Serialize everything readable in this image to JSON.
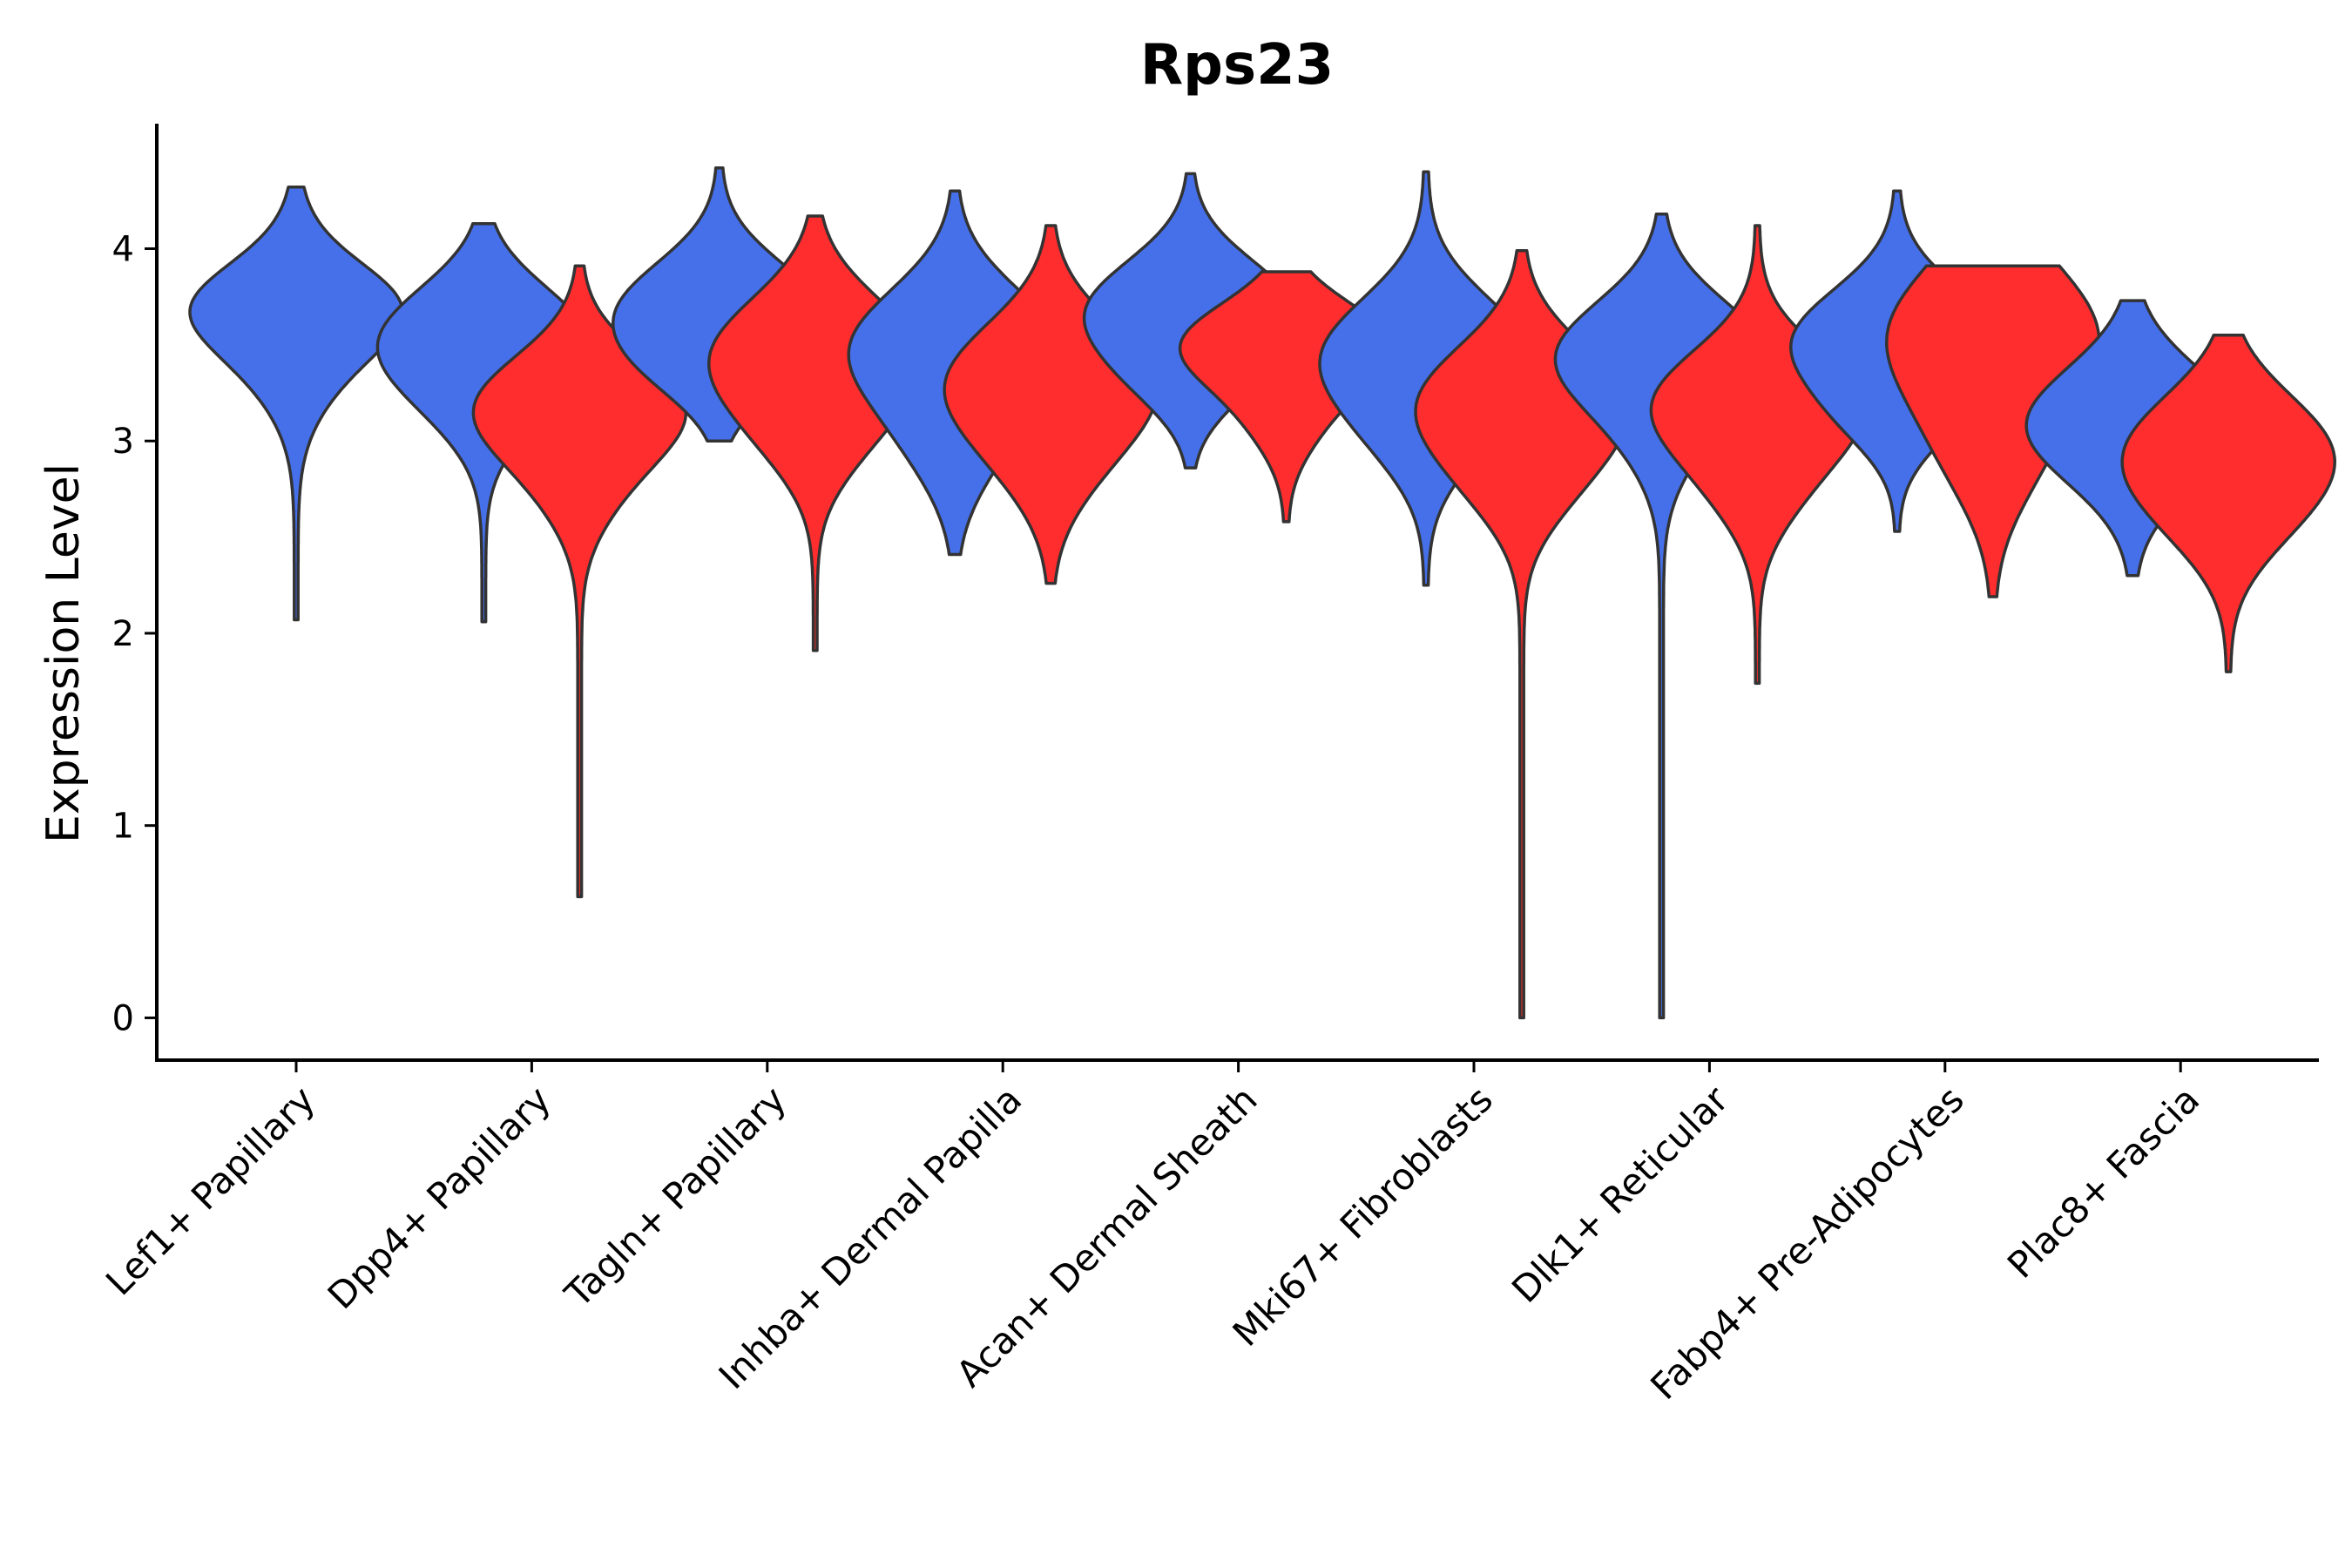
{
  "chart_data": {
    "type": "violin",
    "title": "Rps23",
    "xlabel": "",
    "ylabel": "Expression Level",
    "ylim": [
      -0.22,
      4.65
    ],
    "yticks": [
      0,
      1,
      2,
      3,
      4
    ],
    "grid": false,
    "legend": "none",
    "colors": {
      "group1": "#4570EA",
      "group2": "#FF2D2D",
      "outline": "#333333"
    },
    "categories": [
      "Lef1+ Papillary",
      "Dpp4+ Papillary",
      "Tagln+ Papillary",
      "Inhba+ Dermal Papilla",
      "Acan+ Dermal Sheath",
      "Mki67+ Fibroblasts",
      "Dlk1+ Reticular",
      "Fabp4+ Pre-Adipocytes",
      "Plac8+ Fascia"
    ],
    "violins": [
      {
        "category": 0,
        "group": 1,
        "min": 2.07,
        "max": 4.32,
        "peaks": [
          {
            "y": 3.6,
            "w": 1.0,
            "s": 0.32
          },
          {
            "y": 3.72,
            "w": 0.55,
            "s": 0.2
          }
        ]
      },
      {
        "category": 1,
        "group": 1,
        "min": 2.06,
        "max": 4.13,
        "peaks": [
          {
            "y": 3.55,
            "w": 1.0,
            "s": 0.27
          },
          {
            "y": 3.2,
            "w": 0.35,
            "s": 0.25
          }
        ]
      },
      {
        "category": 1,
        "group": 2,
        "min": 0.63,
        "max": 3.91,
        "peaks": [
          {
            "y": 3.18,
            "w": 1.0,
            "s": 0.27
          },
          {
            "y": 2.75,
            "w": 0.25,
            "s": 0.25
          }
        ]
      },
      {
        "category": 2,
        "group": 1,
        "min": 3.0,
        "max": 4.42,
        "peaks": [
          {
            "y": 3.68,
            "w": 1.0,
            "s": 0.26
          },
          {
            "y": 3.35,
            "w": 0.35,
            "s": 0.2
          }
        ]
      },
      {
        "category": 2,
        "group": 2,
        "min": 1.91,
        "max": 4.17,
        "peaks": [
          {
            "y": 3.45,
            "w": 1.0,
            "s": 0.3
          },
          {
            "y": 3.0,
            "w": 0.3,
            "s": 0.25
          }
        ]
      },
      {
        "category": 3,
        "group": 1,
        "min": 2.41,
        "max": 4.3,
        "peaks": [
          {
            "y": 3.5,
            "w": 1.0,
            "s": 0.3
          },
          {
            "y": 3.0,
            "w": 0.35,
            "s": 0.28
          }
        ]
      },
      {
        "category": 3,
        "group": 2,
        "min": 2.26,
        "max": 4.12,
        "peaks": [
          {
            "y": 3.33,
            "w": 1.0,
            "s": 0.3
          },
          {
            "y": 2.9,
            "w": 0.35,
            "s": 0.28
          }
        ]
      },
      {
        "category": 4,
        "group": 1,
        "min": 2.86,
        "max": 4.39,
        "peaks": [
          {
            "y": 3.68,
            "w": 1.0,
            "s": 0.26
          },
          {
            "y": 3.3,
            "w": 0.3,
            "s": 0.2
          }
        ]
      },
      {
        "category": 4,
        "group": 2,
        "min": 2.58,
        "max": 3.88,
        "peaks": [
          {
            "y": 3.5,
            "w": 1.0,
            "s": 0.22
          },
          {
            "y": 3.1,
            "w": 0.25,
            "s": 0.2
          }
        ]
      },
      {
        "category": 5,
        "group": 1,
        "min": 2.25,
        "max": 4.4,
        "peaks": [
          {
            "y": 3.45,
            "w": 1.0,
            "s": 0.3
          },
          {
            "y": 3.0,
            "w": 0.3,
            "s": 0.25
          }
        ]
      },
      {
        "category": 5,
        "group": 2,
        "min": 0.0,
        "max": 3.99,
        "peaks": [
          {
            "y": 3.2,
            "w": 1.0,
            "s": 0.3
          },
          {
            "y": 2.75,
            "w": 0.3,
            "s": 0.25
          }
        ]
      },
      {
        "category": 6,
        "group": 1,
        "min": 0.0,
        "max": 4.18,
        "peaks": [
          {
            "y": 3.45,
            "w": 1.0,
            "s": 0.28
          },
          {
            "y": 3.0,
            "w": 0.2,
            "s": 0.25
          }
        ]
      },
      {
        "category": 6,
        "group": 2,
        "min": 1.74,
        "max": 4.12,
        "peaks": [
          {
            "y": 3.2,
            "w": 1.0,
            "s": 0.28
          },
          {
            "y": 2.75,
            "w": 0.3,
            "s": 0.25
          }
        ]
      },
      {
        "category": 7,
        "group": 1,
        "min": 2.53,
        "max": 4.3,
        "peaks": [
          {
            "y": 3.52,
            "w": 1.0,
            "s": 0.27
          },
          {
            "y": 3.1,
            "w": 0.3,
            "s": 0.2
          }
        ]
      },
      {
        "category": 7,
        "group": 2,
        "min": 2.19,
        "max": 3.91,
        "peaks": [
          {
            "y": 3.55,
            "w": 1.0,
            "s": 0.38
          },
          {
            "y": 2.9,
            "w": 0.3,
            "s": 0.3
          }
        ]
      },
      {
        "category": 8,
        "group": 1,
        "min": 2.3,
        "max": 3.73,
        "peaks": [
          {
            "y": 3.08,
            "w": 1.0,
            "s": 0.3
          }
        ]
      },
      {
        "category": 8,
        "group": 2,
        "min": 1.8,
        "max": 3.55,
        "peaks": [
          {
            "y": 2.95,
            "w": 1.0,
            "s": 0.3
          },
          {
            "y": 2.55,
            "w": 0.3,
            "s": 0.25
          }
        ]
      }
    ]
  }
}
